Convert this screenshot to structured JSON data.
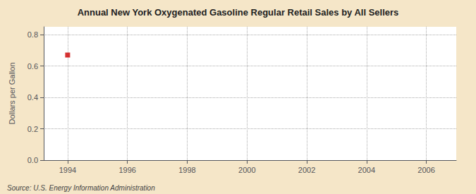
{
  "chart_data": {
    "type": "scatter",
    "title": "Annual New York Oxygenated Gasoline Regular Retail Sales by All Sellers",
    "ylabel": "Dollars per Gallon",
    "annotations": [
      "Source: U.S. Energy Information Administration"
    ],
    "x": [
      1994
    ],
    "values": [
      0.67
    ],
    "color": "#cc0000",
    "marker": "square",
    "xlim": [
      1993.2,
      2007.0
    ],
    "ylim": [
      0.0,
      0.85
    ],
    "xticks": [
      1994,
      1996,
      1998,
      2000,
      2002,
      2004,
      2006
    ],
    "yticks": [
      {
        "value": 0,
        "label": "0.0"
      },
      0.2,
      0.4,
      0.6,
      0.8
    ],
    "grid": true
  }
}
